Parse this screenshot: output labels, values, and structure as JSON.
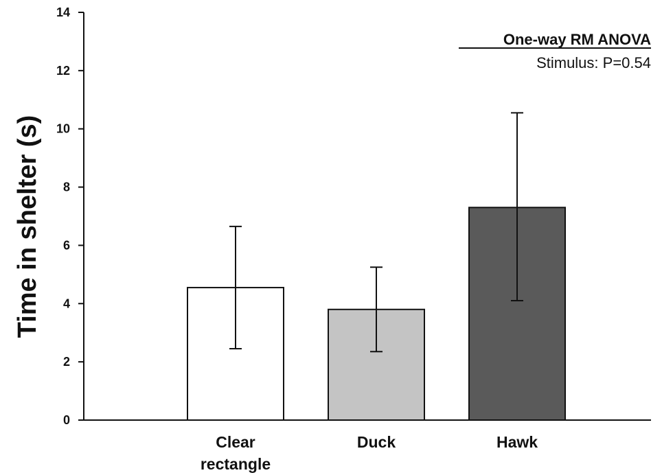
{
  "chart_data": {
    "type": "bar",
    "categories": [
      "Clear rectangle",
      "Duck",
      "Hawk"
    ],
    "category_lines": [
      [
        "Clear",
        "rectangle"
      ],
      [
        "Duck"
      ],
      [
        "Hawk"
      ]
    ],
    "values": [
      4.55,
      3.8,
      7.3
    ],
    "error_upper": [
      6.65,
      5.25,
      10.55
    ],
    "error_lower": [
      2.45,
      2.35,
      4.1
    ],
    "bar_colors": [
      "#ffffff",
      "#c4c4c4",
      "#5a5a5a"
    ],
    "ylabel": "Time in shelter (s)",
    "xlabel": "",
    "ylim": [
      0,
      14
    ],
    "yticks": [
      0,
      2,
      4,
      6,
      8,
      10,
      12,
      14
    ],
    "grid": false,
    "annotation": {
      "title": "One-way RM ANOVA",
      "text": "Stimulus: P=0.54"
    }
  }
}
